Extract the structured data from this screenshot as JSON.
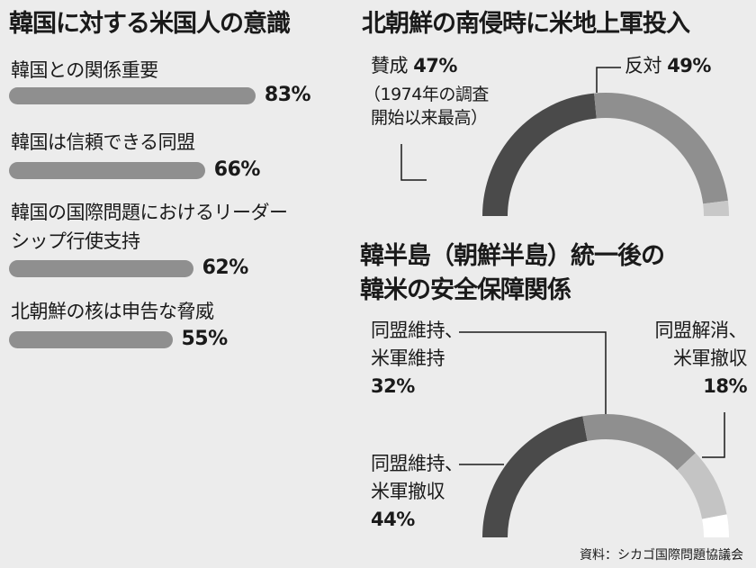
{
  "left_chart": {
    "title": "韓国に対する米国人の意識",
    "items": [
      {
        "label": "韓国との関係重要",
        "value": 83,
        "value_label": "83%"
      },
      {
        "label": "韓国は信頼できる同盟",
        "value": 66,
        "value_label": "66%"
      },
      {
        "label_line1": "韓国の国際問題におけるリーダー",
        "label_line2": "シップ行使支持",
        "value": 62,
        "value_label": "62%"
      },
      {
        "label": "北朝鮮の核は申告な脅威",
        "value": 55,
        "value_label": "55%"
      }
    ]
  },
  "chart_data": [
    {
      "type": "bar",
      "title": "韓国に対する米国人の意識",
      "categories": [
        "韓国との関係重要",
        "韓国は信頼できる同盟",
        "韓国の国際問題におけるリーダーシップ行使支持",
        "北朝鮮の核は申告な脅威"
      ],
      "values": [
        83,
        66,
        62,
        55
      ],
      "orientation": "horizontal",
      "unit": "%"
    },
    {
      "type": "pie",
      "style": "half-donut",
      "title": "北朝鮮の南侵時に米地上軍投入",
      "slices": [
        {
          "label": "賛成",
          "value": 47,
          "value_label": "47%",
          "note_line1": "（1974年の調査",
          "note_line2": "開始以来最高）",
          "color": "#4a4a4a"
        },
        {
          "label": "反対",
          "value": 49,
          "value_label": "49%",
          "color": "#8f8f8f"
        },
        {
          "label": "",
          "value": 4,
          "color": "#c8c8c8"
        }
      ]
    },
    {
      "type": "pie",
      "style": "half-donut",
      "title_line1": "韓半島（朝鮮半島）統一後の",
      "title_line2": "韓米の安全保障関係",
      "slices": [
        {
          "label_line1": "同盟維持、",
          "label_line2": "米軍撤収",
          "value": 44,
          "value_label": "44%",
          "color": "#4a4a4a"
        },
        {
          "label_line1": "同盟維持、",
          "label_line2": "米軍維持",
          "value": 32,
          "value_label": "32%",
          "color": "#8f8f8f"
        },
        {
          "label_line1": "同盟解消、",
          "label_line2": "米軍撤収",
          "value": 18,
          "value_label": "18%",
          "color": "#c4c4c4"
        },
        {
          "label": "",
          "value": 6,
          "color": "#ffffff"
        }
      ]
    }
  ],
  "source": "資料：シカゴ国際問題協議会"
}
